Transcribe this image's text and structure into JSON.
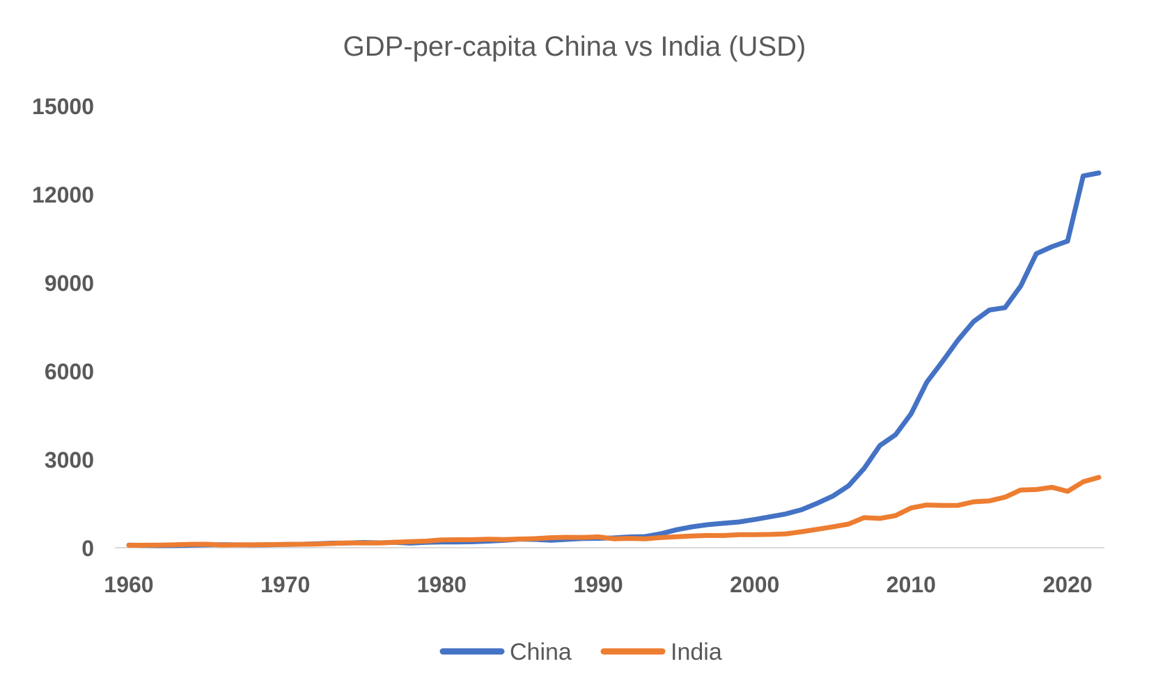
{
  "chart_data": {
    "type": "line",
    "title": "GDP-per-capita China vs India (USD)",
    "xlabel": "",
    "ylabel": "",
    "xlim": [
      1960,
      2022
    ],
    "ylim": [
      0,
      15000
    ],
    "y_ticks": [
      0,
      3000,
      6000,
      9000,
      12000,
      15000
    ],
    "x_ticks": [
      1960,
      1970,
      1980,
      1990,
      2000,
      2010,
      2020
    ],
    "y_tick_labels": [
      "0",
      "3000",
      "6000",
      "9000",
      "12000",
      "15000"
    ],
    "x_tick_labels": [
      "1960",
      "1970",
      "1980",
      "1990",
      "2000",
      "2010",
      "2020"
    ],
    "grid": false,
    "legend_position": "bottom",
    "x": [
      1960,
      1961,
      1962,
      1963,
      1964,
      1965,
      1966,
      1967,
      1968,
      1969,
      1970,
      1971,
      1972,
      1973,
      1974,
      1975,
      1976,
      1977,
      1978,
      1979,
      1980,
      1981,
      1982,
      1983,
      1984,
      1985,
      1986,
      1987,
      1988,
      1989,
      1990,
      1991,
      1992,
      1993,
      1994,
      1995,
      1996,
      1997,
      1998,
      1999,
      2000,
      2001,
      2002,
      2003,
      2004,
      2005,
      2006,
      2007,
      2008,
      2009,
      2010,
      2011,
      2012,
      2013,
      2014,
      2015,
      2016,
      2017,
      2018,
      2019,
      2020,
      2021,
      2022
    ],
    "series": [
      {
        "name": "China",
        "color": "#4472C4",
        "values": [
          90,
          76,
          70,
          74,
          85,
          98,
          104,
          97,
          91,
          100,
          113,
          119,
          132,
          157,
          160,
          178,
          165,
          185,
          156,
          184,
          195,
          197,
          203,
          225,
          251,
          294,
          281,
          252,
          284,
          311,
          318,
          333,
          366,
          377,
          473,
          609,
          709,
          781,
          828,
          873,
          959,
          1053,
          1149,
          1289,
          1509,
          1753,
          2099,
          2694,
          3468,
          3832,
          4550,
          5618,
          6317,
          7051,
          7679,
          8067,
          8147,
          8879,
          9977,
          10217,
          10409,
          12618,
          12720
        ]
      },
      {
        "name": "India",
        "color": "#ED7D31",
        "values": [
          82,
          85,
          90,
          101,
          116,
          119,
          90,
          96,
          99,
          107,
          112,
          119,
          122,
          143,
          163,
          158,
          161,
          186,
          206,
          224,
          267,
          271,
          274,
          291,
          277,
          296,
          310,
          340,
          354,
          347,
          368,
          303,
          317,
          301,
          346,
          374,
          400,
          415,
          413,
          441,
          443,
          451,
          470,
          543,
          624,
          710,
          802,
          1023,
          994,
          1090,
          1351,
          1450,
          1434,
          1438,
          1560,
          1590,
          1714,
          1958,
          1974,
          2050,
          1913,
          2238,
          2389
        ]
      }
    ]
  }
}
